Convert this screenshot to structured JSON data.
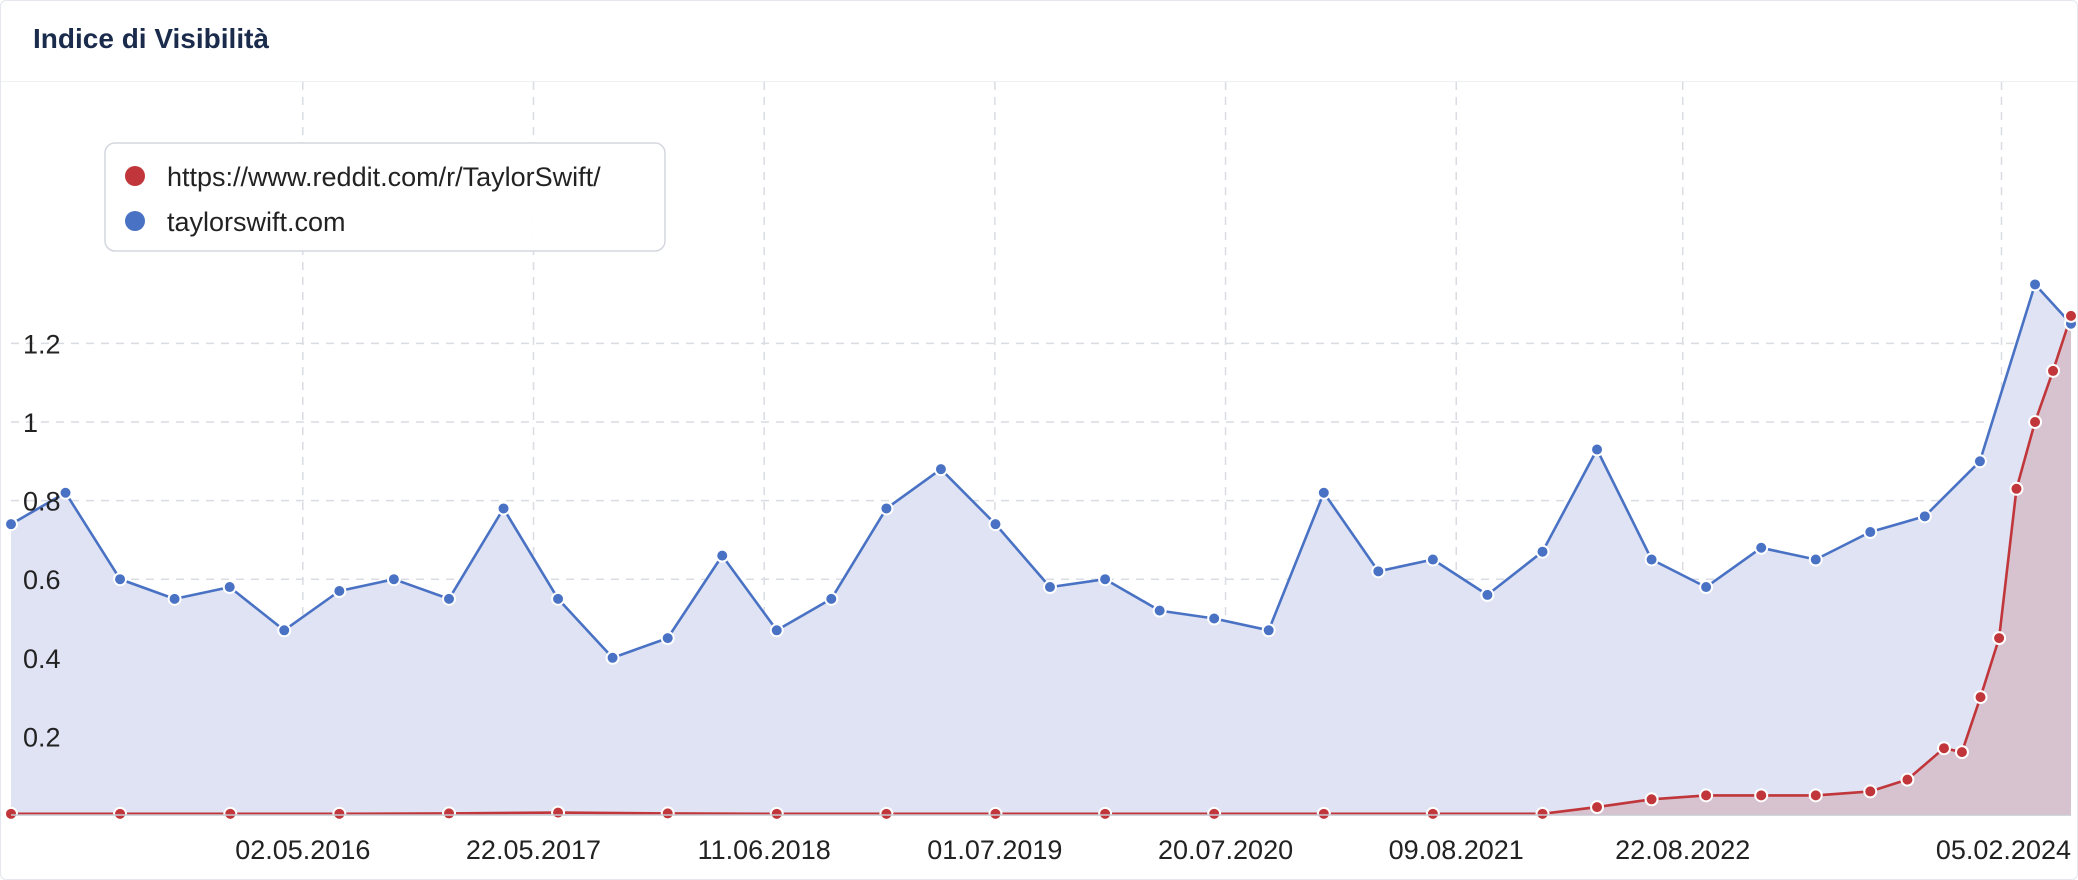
{
  "card": {
    "title": "Indice di Visibilità"
  },
  "chart_data": {
    "type": "area",
    "title": "Indice di Visibilità",
    "xlabel": "",
    "ylabel": "",
    "x_start": "01.01.2015",
    "x_end": "31.05.2024",
    "xlim": [
      "01.01.2015",
      "31.05.2024"
    ],
    "ylim": [
      0,
      1.4
    ],
    "x_tick_labels": [
      "02.05.2016",
      "22.05.2017",
      "11.06.2018",
      "01.07.2019",
      "20.07.2020",
      "09.08.2021",
      "22.08.2022",
      "05.02.2024"
    ],
    "y_ticks": [
      0.2,
      0.4,
      0.6,
      0.8,
      1,
      1.2
    ],
    "y_tick_labels": [
      "0.2",
      "0.4",
      "0.6",
      "0.8",
      "1",
      "1.2"
    ],
    "grid": true,
    "legend": "top-left",
    "series": [
      {
        "name": "https://www.reddit.com/r/TaylorSwift/",
        "color": "#c0363a",
        "fill": "#d4b8c4",
        "x": [
          "01.01.2015",
          "02.07.2015",
          "02.01.2016",
          "02.07.2016",
          "01.01.2017",
          "02.07.2017",
          "01.01.2018",
          "02.07.2018",
          "01.01.2019",
          "02.07.2019",
          "01.01.2020",
          "01.07.2020",
          "31.12.2020",
          "01.07.2021",
          "31.12.2021",
          "01.04.2022",
          "01.07.2022",
          "30.09.2022",
          "31.12.2022",
          "01.04.2023",
          "01.07.2023",
          "01.09.2023",
          "01.11.2023",
          "01.12.2023",
          "01.01.2024",
          "01.02.2024",
          "01.03.2024",
          "01.04.2024",
          "01.05.2024",
          "31.05.2024"
        ],
        "values": [
          0.003,
          0.003,
          0.003,
          0.003,
          0.004,
          0.006,
          0.004,
          0.003,
          0.003,
          0.003,
          0.003,
          0.003,
          0.003,
          0.003,
          0.003,
          0.02,
          0.04,
          0.05,
          0.05,
          0.05,
          0.06,
          0.09,
          0.17,
          0.16,
          0.3,
          0.45,
          0.83,
          1.0,
          1.13,
          1.27
        ]
      },
      {
        "name": "taylorswift.com",
        "color": "#4a72c4",
        "fill": "#dfe3f3",
        "x": [
          "01.01.2015",
          "02.04.2015",
          "02.07.2015",
          "01.10.2015",
          "01.01.2016",
          "01.04.2016",
          "02.07.2016",
          "01.10.2016",
          "01.01.2017",
          "02.04.2017",
          "02.07.2017",
          "01.10.2017",
          "01.01.2018",
          "02.04.2018",
          "02.07.2018",
          "01.10.2018",
          "01.01.2019",
          "02.04.2019",
          "02.07.2019",
          "01.10.2019",
          "01.01.2020",
          "01.04.2020",
          "01.07.2020",
          "30.09.2020",
          "31.12.2020",
          "01.04.2021",
          "01.07.2021",
          "30.09.2021",
          "31.12.2021",
          "01.04.2022",
          "01.07.2022",
          "30.09.2022",
          "31.12.2022",
          "01.04.2023",
          "01.07.2023",
          "30.09.2023",
          "31.12.2023",
          "01.04.2024",
          "31.05.2024"
        ],
        "values": [
          0.74,
          0.82,
          0.6,
          0.55,
          0.58,
          0.47,
          0.57,
          0.6,
          0.55,
          0.78,
          0.55,
          0.4,
          0.45,
          0.66,
          0.47,
          0.55,
          0.78,
          0.88,
          0.74,
          0.58,
          0.6,
          0.52,
          0.5,
          0.47,
          0.82,
          0.62,
          0.65,
          0.56,
          0.67,
          0.93,
          0.65,
          0.58,
          0.68,
          0.65,
          0.72,
          0.76,
          0.9,
          1.35,
          1.25
        ]
      }
    ]
  }
}
